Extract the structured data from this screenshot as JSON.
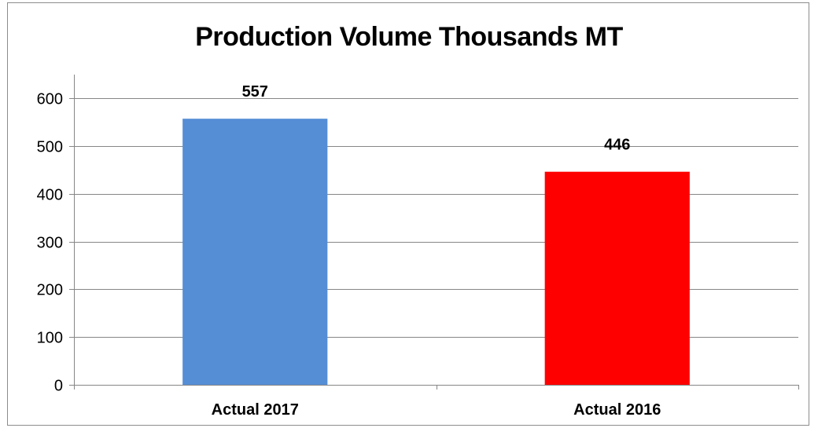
{
  "chart_data": {
    "type": "bar",
    "title": "Production Volume Thousands MT",
    "categories": [
      "Actual 2017",
      "Actual 2016"
    ],
    "values": [
      557,
      446
    ],
    "data_labels": [
      "557",
      "446"
    ],
    "bar_colors": [
      "#558ED5",
      "#FF0000"
    ],
    "ylim": [
      0,
      600
    ],
    "yticks": [
      0,
      100,
      200,
      300,
      400,
      500,
      600
    ],
    "grid": true,
    "legend": "none",
    "xlabel": "",
    "ylabel": ""
  }
}
